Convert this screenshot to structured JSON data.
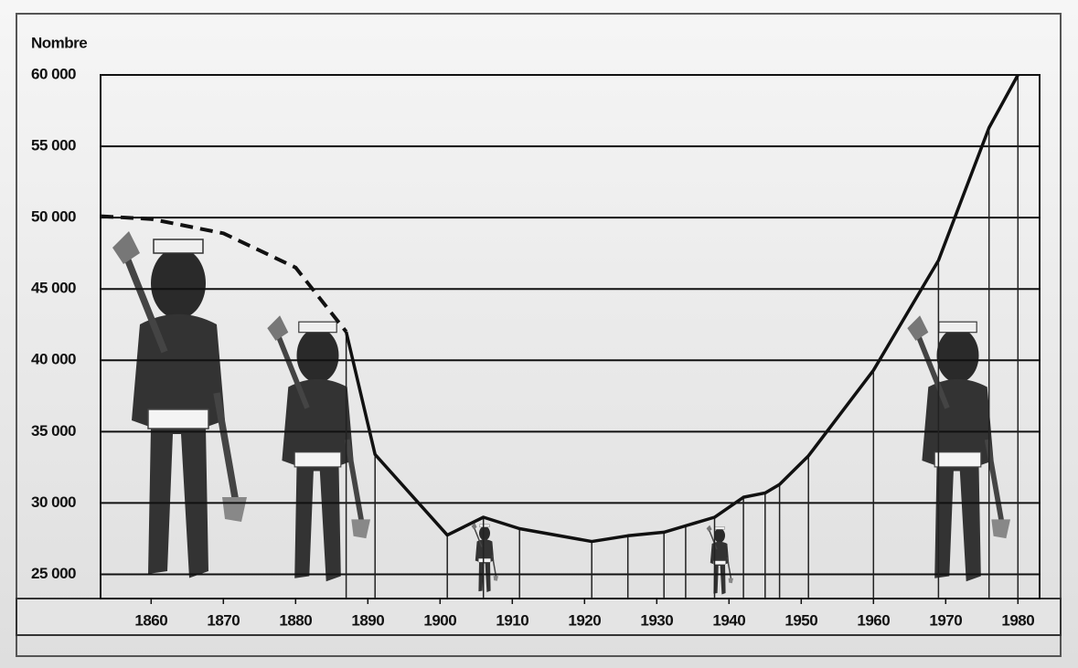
{
  "chart_data": {
    "type": "line",
    "y_label": "Nombre",
    "xlim": [
      1853,
      1983
    ],
    "ylim": [
      23300,
      60000
    ],
    "xticks": [
      1860,
      1870,
      1880,
      1890,
      1900,
      1910,
      1920,
      1930,
      1940,
      1950,
      1960,
      1970,
      1980
    ],
    "yticks": [
      {
        "value": 25000,
        "label": "25 000"
      },
      {
        "value": 30000,
        "label": "30 000"
      },
      {
        "value": 35000,
        "label": "35 000"
      },
      {
        "value": 40000,
        "label": "40 000"
      },
      {
        "value": 45000,
        "label": "45 000"
      },
      {
        "value": 50000,
        "label": "50 000"
      },
      {
        "value": 55000,
        "label": "55 000"
      },
      {
        "value": 60000,
        "label": "60 000"
      }
    ],
    "grid": true,
    "series": [
      {
        "color": "#111111",
        "dashed": true,
        "drop_lines": false,
        "x": [
          1853,
          1860,
          1870,
          1880,
          1887
        ],
        "values": [
          50100,
          49900,
          48900,
          46500,
          42000
        ]
      },
      {
        "color": "#111111",
        "dashed": false,
        "drop_lines": true,
        "x": [
          1887,
          1891,
          1901,
          1906,
          1911,
          1921,
          1926,
          1931,
          1934,
          1938,
          1942,
          1945,
          1947,
          1951,
          1960,
          1969,
          1976,
          1980
        ],
        "values": [
          42000,
          33400,
          27750,
          29000,
          28200,
          27300,
          27700,
          27950,
          28400,
          29000,
          30400,
          30700,
          31300,
          33300,
          39300,
          47000,
          56300,
          60000
        ]
      }
    ]
  }
}
